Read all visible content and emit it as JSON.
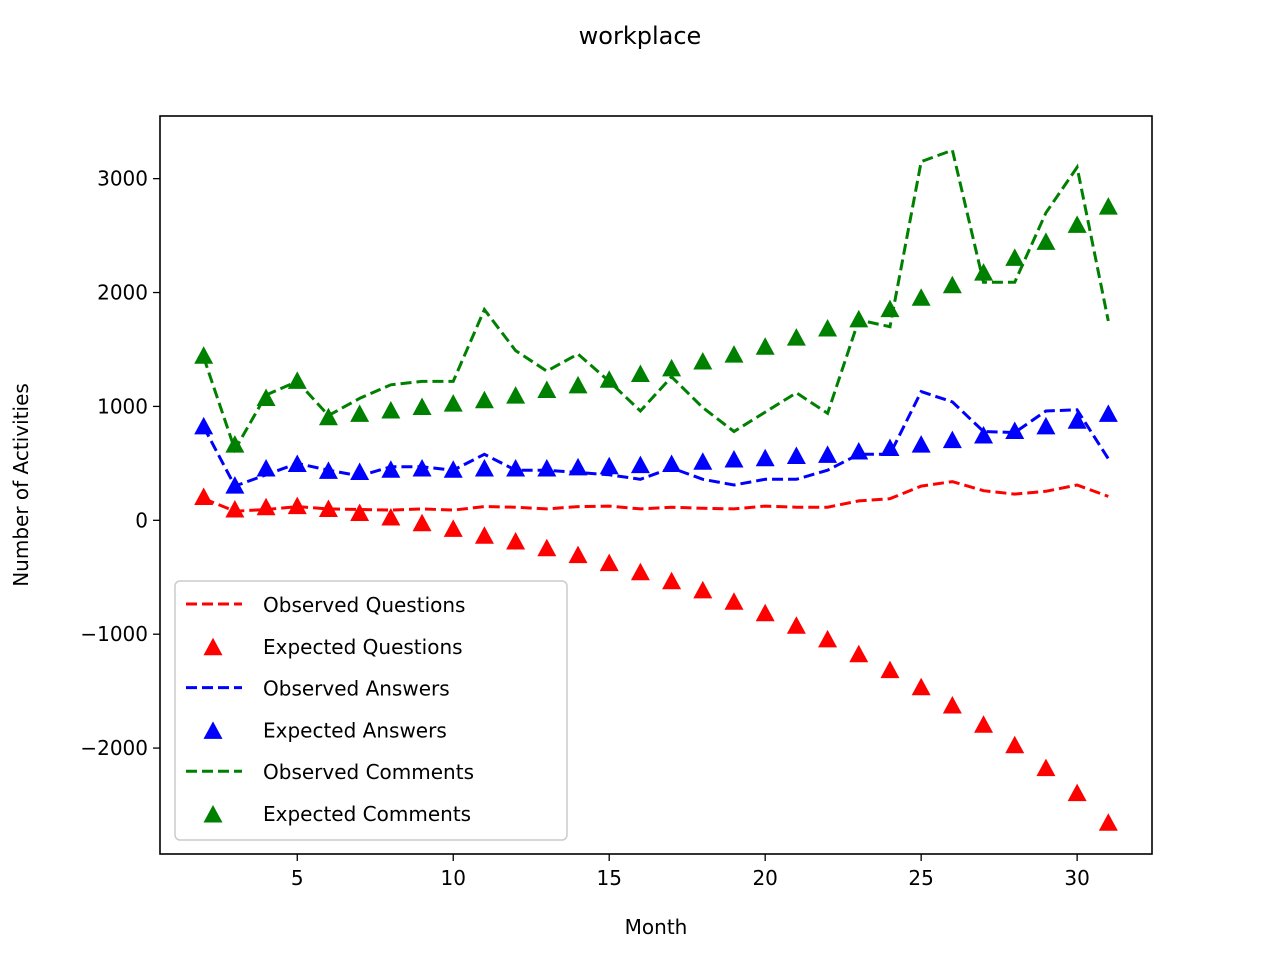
{
  "chart_data": {
    "type": "line",
    "title": "workplace",
    "xlabel": "Month",
    "ylabel": "Number of Activities",
    "xlim": [
      0.6,
      32.4
    ],
    "ylim": [
      -2930,
      3550
    ],
    "xticks": [
      5,
      10,
      15,
      20,
      25,
      30
    ],
    "yticks": [
      -2000,
      -1000,
      0,
      1000,
      2000,
      3000
    ],
    "ytick_labels": [
      "−2000",
      "−1000",
      "0",
      "1000",
      "2000",
      "3000"
    ],
    "grid": false,
    "legend_position": "lower-left",
    "x": [
      2,
      3,
      4,
      5,
      6,
      7,
      8,
      9,
      10,
      11,
      12,
      13,
      14,
      15,
      16,
      17,
      18,
      19,
      20,
      21,
      22,
      23,
      24,
      25,
      26,
      27,
      28,
      29,
      30,
      31
    ],
    "series": [
      {
        "name": "Observed Questions",
        "style": "dashed-line",
        "color": "#ff0000",
        "values": [
          190,
          80,
          95,
          120,
          100,
          95,
          90,
          100,
          90,
          120,
          115,
          100,
          120,
          125,
          100,
          115,
          105,
          100,
          125,
          115,
          115,
          170,
          190,
          300,
          340,
          260,
          230,
          255,
          310,
          210
        ]
      },
      {
        "name": "Expected Questions",
        "style": "triangle-markers",
        "color": "#ff0000",
        "values": [
          200,
          90,
          110,
          120,
          95,
          60,
          20,
          -30,
          -80,
          -140,
          -190,
          -250,
          -310,
          -380,
          -460,
          -540,
          -620,
          -720,
          -820,
          -930,
          -1050,
          -1180,
          -1320,
          -1470,
          -1630,
          -1800,
          -1980,
          -2180,
          -2400,
          -2660
        ]
      },
      {
        "name": "Observed Answers",
        "style": "dashed-line",
        "color": "#0000ff",
        "values": [
          820,
          300,
          400,
          500,
          440,
          390,
          470,
          470,
          440,
          580,
          440,
          440,
          420,
          400,
          360,
          460,
          360,
          310,
          360,
          360,
          440,
          580,
          580,
          1130,
          1040,
          780,
          770,
          960,
          970,
          540
        ]
      },
      {
        "name": "Expected Answers",
        "style": "triangle-markers",
        "color": "#0000ff",
        "values": [
          820,
          300,
          450,
          490,
          430,
          420,
          440,
          450,
          440,
          450,
          450,
          450,
          460,
          470,
          480,
          490,
          510,
          530,
          540,
          560,
          570,
          600,
          630,
          660,
          700,
          740,
          780,
          820,
          870,
          930
        ]
      },
      {
        "name": "Observed Comments",
        "style": "dashed-line",
        "color": "#008000",
        "values": [
          1430,
          620,
          1100,
          1220,
          920,
          1070,
          1190,
          1220,
          1220,
          1850,
          1490,
          1310,
          1460,
          1220,
          960,
          1260,
          990,
          780,
          950,
          1120,
          940,
          1760,
          1700,
          3150,
          3250,
          2090,
          2090,
          2700,
          3100,
          1750
        ]
      },
      {
        "name": "Expected Comments",
        "style": "triangle-markers",
        "color": "#008000",
        "values": [
          1440,
          660,
          1070,
          1220,
          900,
          930,
          960,
          990,
          1020,
          1050,
          1090,
          1140,
          1180,
          1230,
          1280,
          1330,
          1390,
          1450,
          1520,
          1600,
          1680,
          1760,
          1850,
          1950,
          2060,
          2170,
          2300,
          2440,
          2590,
          2750
        ]
      }
    ]
  }
}
